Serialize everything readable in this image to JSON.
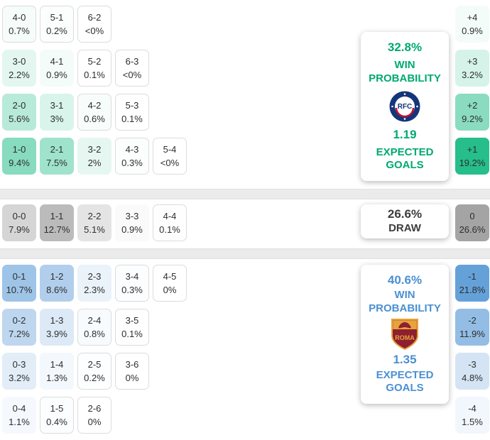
{
  "chart_data": {
    "type": "heatmap",
    "description": "Correct-score probability matrix with win probabilities, expected goals and goal-margin totals",
    "color_scale": {
      "divisor": 20,
      "max_alpha": 0.85
    },
    "sections": [
      {
        "id": "home",
        "outcome": "home_win",
        "crest_icon": "rangers-crest",
        "accent": "#00b377",
        "text_color": "#00a971",
        "panel": {
          "win_probability": "32.8%",
          "win_probability_label": "WIN PROBABILITY",
          "expected_goals": "1.19",
          "expected_goals_label": "EXPECTED GOALS"
        },
        "rows": [
          [
            {
              "score": "4-0",
              "pct": "0.7%"
            },
            {
              "score": "5-1",
              "pct": "0.2%"
            },
            {
              "score": "6-2",
              "pct": "<0%"
            }
          ],
          [
            {
              "score": "3-0",
              "pct": "2.2%"
            },
            {
              "score": "4-1",
              "pct": "0.9%"
            },
            {
              "score": "5-2",
              "pct": "0.1%"
            },
            {
              "score": "6-3",
              "pct": "<0%"
            }
          ],
          [
            {
              "score": "2-0",
              "pct": "5.6%"
            },
            {
              "score": "3-1",
              "pct": "3%"
            },
            {
              "score": "4-2",
              "pct": "0.6%"
            },
            {
              "score": "5-3",
              "pct": "0.1%"
            }
          ],
          [
            {
              "score": "1-0",
              "pct": "9.4%"
            },
            {
              "score": "2-1",
              "pct": "7.5%"
            },
            {
              "score": "3-2",
              "pct": "2%"
            },
            {
              "score": "4-3",
              "pct": "0.3%"
            },
            {
              "score": "5-4",
              "pct": "<0%"
            }
          ]
        ],
        "margins": [
          {
            "score": "+4",
            "pct": "0.9%"
          },
          {
            "score": "+3",
            "pct": "3.2%"
          },
          {
            "score": "+2",
            "pct": "9.2%"
          },
          {
            "score": "+1",
            "pct": "19.2%"
          }
        ]
      },
      {
        "id": "draw",
        "outcome": "draw",
        "accent": "#949494",
        "text_color": "#3c3c3c",
        "panel": {
          "probability": "26.6%",
          "label": "DRAW"
        },
        "rows": [
          [
            {
              "score": "0-0",
              "pct": "7.9%"
            },
            {
              "score": "1-1",
              "pct": "12.7%"
            },
            {
              "score": "2-2",
              "pct": "5.1%"
            },
            {
              "score": "3-3",
              "pct": "0.9%"
            },
            {
              "score": "4-4",
              "pct": "0.1%"
            }
          ]
        ],
        "margins": [
          {
            "score": "0",
            "pct": "26.6%"
          }
        ]
      },
      {
        "id": "away",
        "outcome": "away_win",
        "crest_icon": "roma-crest",
        "accent": "#4a90d2",
        "text_color": "#4a90d2",
        "panel": {
          "win_probability": "40.6%",
          "win_probability_label": "WIN PROBABILITY",
          "expected_goals": "1.35",
          "expected_goals_label": "EXPECTED GOALS"
        },
        "rows": [
          [
            {
              "score": "0-1",
              "pct": "10.7%"
            },
            {
              "score": "1-2",
              "pct": "8.6%"
            },
            {
              "score": "2-3",
              "pct": "2.3%"
            },
            {
              "score": "3-4",
              "pct": "0.3%"
            },
            {
              "score": "4-5",
              "pct": "0%"
            }
          ],
          [
            {
              "score": "0-2",
              "pct": "7.2%"
            },
            {
              "score": "1-3",
              "pct": "3.9%"
            },
            {
              "score": "2-4",
              "pct": "0.8%"
            },
            {
              "score": "3-5",
              "pct": "0.1%"
            }
          ],
          [
            {
              "score": "0-3",
              "pct": "3.2%"
            },
            {
              "score": "1-4",
              "pct": "1.3%"
            },
            {
              "score": "2-5",
              "pct": "0.2%"
            },
            {
              "score": "3-6",
              "pct": "0%"
            }
          ],
          [
            {
              "score": "0-4",
              "pct": "1.1%"
            },
            {
              "score": "1-5",
              "pct": "0.4%"
            },
            {
              "score": "2-6",
              "pct": "0%"
            }
          ]
        ],
        "margins": [
          {
            "score": "-1",
            "pct": "21.8%"
          },
          {
            "score": "-2",
            "pct": "11.9%"
          },
          {
            "score": "-3",
            "pct": "4.8%"
          },
          {
            "score": "-4",
            "pct": "1.5%"
          }
        ]
      }
    ]
  }
}
